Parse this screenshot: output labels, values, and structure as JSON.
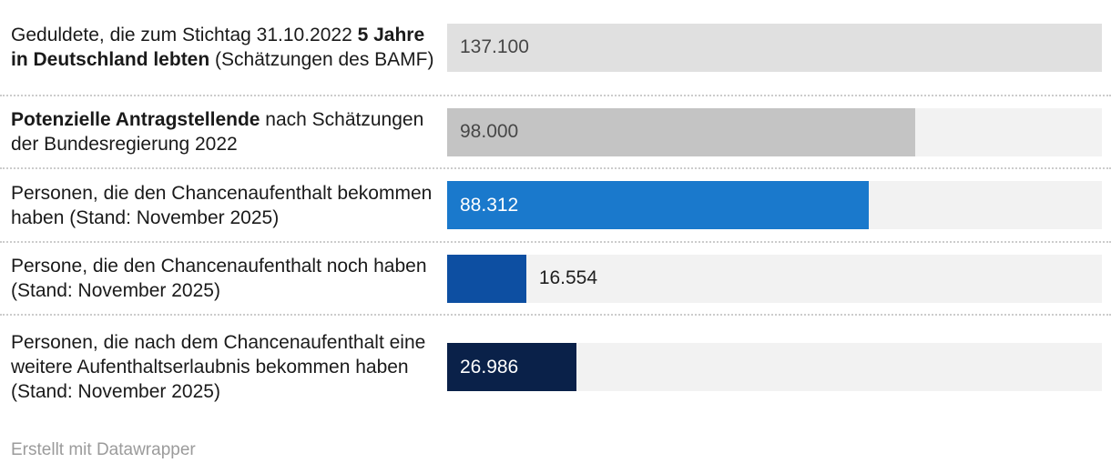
{
  "chart_data": {
    "type": "bar",
    "orientation": "horizontal",
    "max_value": 137100,
    "grid": false,
    "rows": [
      {
        "label_prefix": "Geduldete, die zum Stichtag 31.10.2022 ",
        "label_bold": "5 Jahre in Deutschland lebten",
        "label_suffix": " (Schätzungen des BAMF)",
        "value": 137100,
        "value_label": "137.100",
        "bar_color": "#e0e0e0",
        "value_color": "#474747",
        "value_inside": true
      },
      {
        "label_prefix": "",
        "label_bold": "Potenzielle Antragstellende",
        "label_suffix": " nach Schätzungen der Bundesregierung 2022",
        "value": 98000,
        "value_label": "98.000",
        "bar_color": "#c4c4c4",
        "value_color": "#474747",
        "value_inside": true
      },
      {
        "label_prefix": "Personen, die den Chancenaufenthalt bekommen haben (Stand: November 2025)",
        "label_bold": "",
        "label_suffix": "",
        "value": 88312,
        "value_label": "88.312",
        "bar_color": "#1a79cc",
        "value_color": "#ffffff",
        "value_inside": true
      },
      {
        "label_prefix": "Persone, die den Chancenaufenthalt noch haben (Stand: November 2025)",
        "label_bold": "",
        "label_suffix": "",
        "value": 16554,
        "value_label": "16.554",
        "bar_color": "#0d4fa2",
        "value_color": "#1f1f1f",
        "value_inside": false
      },
      {
        "label_prefix": "Personen, die nach dem Chancenaufenthalt eine weitere Aufenthaltserlaubnis bekommen haben (Stand: November 2025)",
        "label_bold": "",
        "label_suffix": "",
        "value": 26986,
        "value_label": "26.986",
        "bar_color": "#0a2149",
        "value_color": "#ffffff",
        "value_inside": true
      }
    ],
    "track_color": "#f2f2f2"
  },
  "footer": {
    "attribution": "Erstellt mit Datawrapper"
  }
}
